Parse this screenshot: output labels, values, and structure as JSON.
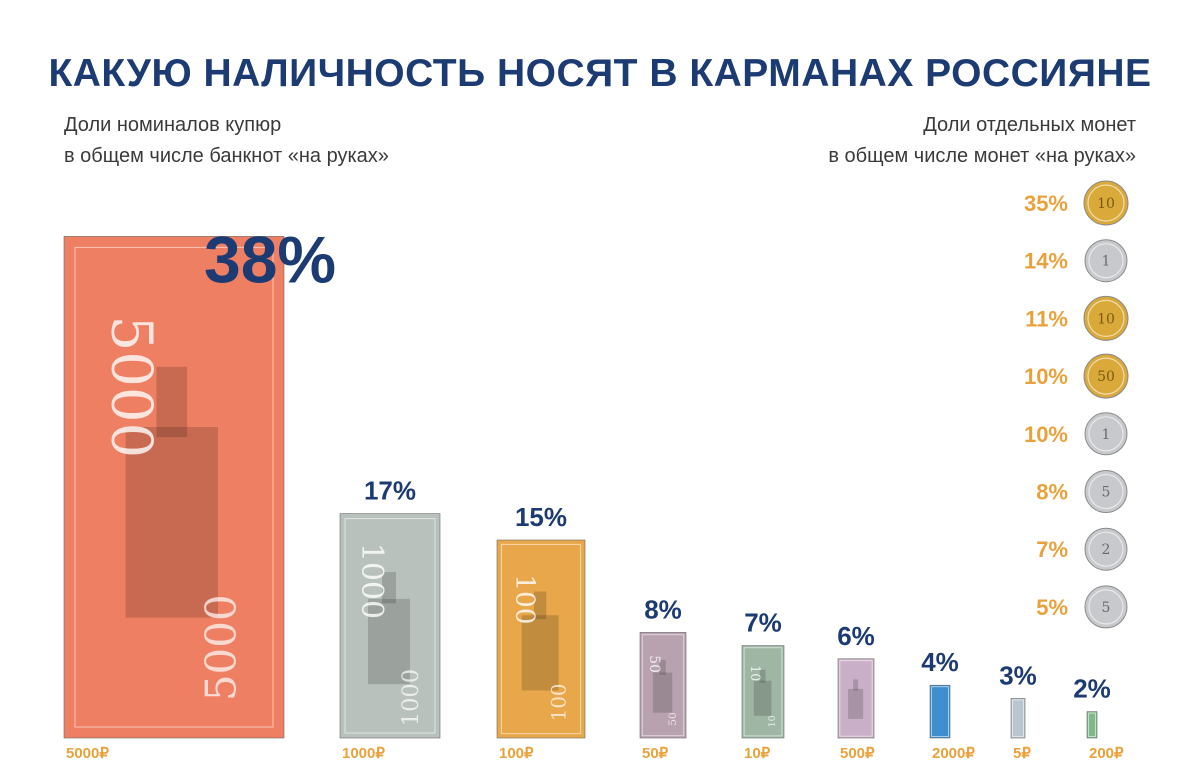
{
  "header": {
    "title": "КАКУЮ НАЛИЧНОСТЬ НОСЯТ В КАРМАНАХ РОССИЯНЕ",
    "left_line1": "Доли номиналов купюр",
    "left_line2": "в общем числе банкнот «на руках»",
    "right_line1": "Доли отдельных монет",
    "right_line2": "в общем числе монет «на руках»"
  },
  "chart_data": [
    {
      "type": "bar",
      "unit": "%",
      "categories": [
        "5000₽",
        "1000₽",
        "100₽",
        "50₽",
        "10₽",
        "500₽",
        "2000₽",
        "5₽",
        "200₽"
      ],
      "values": [
        38,
        17,
        15,
        8,
        7,
        6,
        4,
        3,
        2
      ],
      "labels": [
        "38%",
        "17%",
        "15%",
        "8%",
        "7%",
        "6%",
        "4%",
        "3%",
        "2%"
      ],
      "note_denominations": [
        "5000",
        "1000",
        "100",
        "50",
        "10",
        "500",
        "2000",
        "5",
        "200"
      ],
      "colors": [
        "#ef7f62",
        "#b9c1bd",
        "#e8a74b",
        "#b8a2b0",
        "#9fb6a5",
        "#c9b0c6",
        "#3f8fd0",
        "#b9c6cf",
        "#7fb889"
      ]
    },
    {
      "type": "table",
      "rows": [
        {
          "label": "35%",
          "value": 35,
          "coin": "10",
          "metal": "gold"
        },
        {
          "label": "14%",
          "value": 14,
          "coin": "1",
          "metal": "silver"
        },
        {
          "label": "11%",
          "value": 11,
          "coin": "10",
          "metal": "gold"
        },
        {
          "label": "10%",
          "value": 10,
          "coin": "50",
          "metal": "gold"
        },
        {
          "label": "10%",
          "value": 10,
          "coin": "1",
          "metal": "silver"
        },
        {
          "label": "8%",
          "value": 8,
          "coin": "5",
          "metal": "silver"
        },
        {
          "label": "7%",
          "value": 7,
          "coin": "2",
          "metal": "silver"
        },
        {
          "label": "5%",
          "value": 5,
          "coin": "5",
          "metal": "silver"
        }
      ],
      "colors": {
        "gold": "#d9a93a",
        "silver": "#c7c9cc"
      }
    }
  ]
}
